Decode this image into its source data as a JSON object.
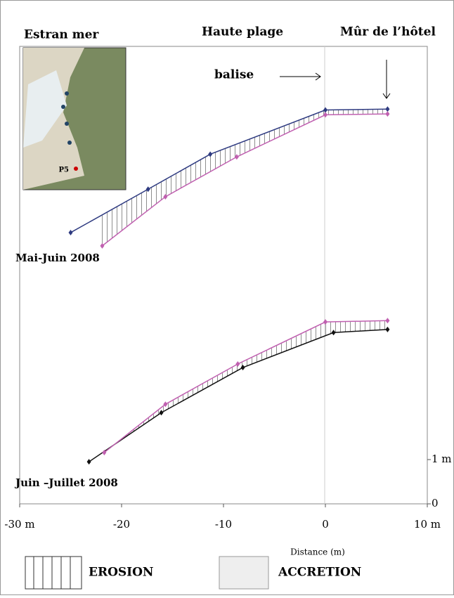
{
  "chart_data": {
    "type": "line",
    "xlabel": "Distance (m)",
    "xlim": [
      -30,
      10
    ],
    "xticks": [
      {
        "value": -30,
        "label": "-30 m"
      },
      -20,
      -10,
      0,
      {
        "value": 10,
        "label": "10 m"
      }
    ],
    "ylim": [
      0,
      10.75
    ],
    "yticks": [
      0,
      {
        "value": 1,
        "label": "1 m"
      }
    ],
    "series": [
      {
        "color": "#2e3a80",
        "x": [
          -25.0,
          -17.4,
          -11.3,
          0,
          6.1
        ],
        "values": [
          6.13,
          7.11,
          7.9,
          8.9,
          8.92
        ]
      },
      {
        "color": "#c060b0",
        "x": [
          -21.9,
          -15.7,
          -8.7,
          0,
          6.1
        ],
        "values": [
          5.83,
          6.94,
          7.84,
          8.79,
          8.81
        ]
      },
      {
        "color": "#111111",
        "x": [
          -23.2,
          -16.1,
          -8.1,
          0.8,
          6.1
        ],
        "values": [
          0.95,
          2.06,
          3.08,
          3.87,
          3.94
        ]
      },
      {
        "color": "#c060b0",
        "x": [
          -21.7,
          -15.7,
          -8.6,
          0,
          6.1
        ],
        "values": [
          1.16,
          2.25,
          3.16,
          4.11,
          4.14
        ]
      }
    ],
    "annotations": {
      "sea": "Estran mer",
      "beach": "Haute plage",
      "wall": "Mûr de l’hôtel",
      "marker": "balise",
      "period1": "Mai-Juin 2008",
      "period2": "Juin –Juillet 2008",
      "inset": "P5"
    },
    "legend": {
      "erosion": "EROSION",
      "accretion": "ACCRETION"
    }
  }
}
